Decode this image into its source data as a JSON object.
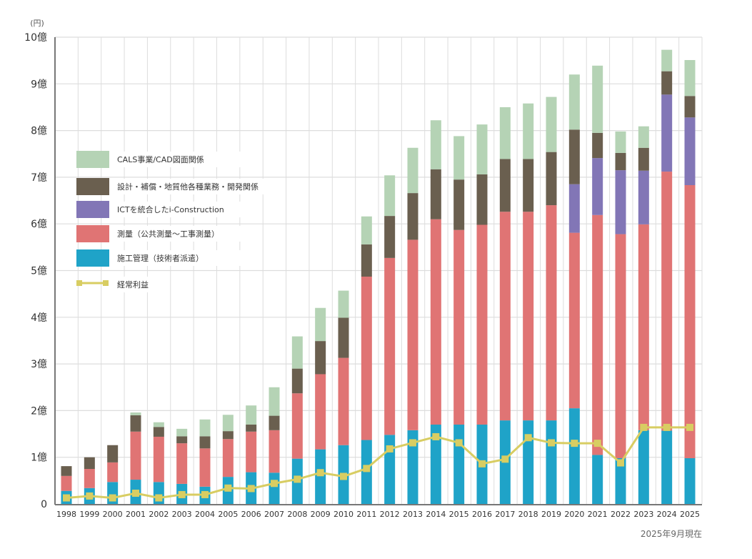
{
  "chart_data": {
    "type": "bar",
    "stacked": true,
    "unit_label": "(円)",
    "footnote": "2025年9月現在",
    "ylim": [
      0,
      10
    ],
    "y_ticks": [
      {
        "value": 0,
        "label": "0"
      },
      {
        "value": 1,
        "label": "1億"
      },
      {
        "value": 2,
        "label": "2億"
      },
      {
        "value": 3,
        "label": "3億"
      },
      {
        "value": 4,
        "label": "4億"
      },
      {
        "value": 5,
        "label": "5億"
      },
      {
        "value": 6,
        "label": "6億"
      },
      {
        "value": 7,
        "label": "7億"
      },
      {
        "value": 8,
        "label": "8億"
      },
      {
        "value": 9,
        "label": "9億"
      },
      {
        "value": 10,
        "label": "10億"
      }
    ],
    "grid": true,
    "legend_position": "upper-left-inside",
    "categories": [
      "1998",
      "1999",
      "2000",
      "2001",
      "2002",
      "2003",
      "2004",
      "2005",
      "2006",
      "2007",
      "2008",
      "2009",
      "2010",
      "2011",
      "2012",
      "2013",
      "2014",
      "2015",
      "2016",
      "2017",
      "2018",
      "2019",
      "2020",
      "2021",
      "2022",
      "2023",
      "2024",
      "2025"
    ],
    "series": [
      {
        "name": "施工管理（技術者派遣）",
        "color": "#1fa3c8",
        "values": [
          0.28,
          0.34,
          0.47,
          0.52,
          0.47,
          0.43,
          0.37,
          0.58,
          0.68,
          0.67,
          0.97,
          1.17,
          1.26,
          1.37,
          1.48,
          1.58,
          1.7,
          1.7,
          1.7,
          1.79,
          1.79,
          1.79,
          2.05,
          1.05,
          0.98,
          1.58,
          1.57,
          0.98
        ]
      },
      {
        "name": "測量（公共測量〜工事測量）",
        "color": "#e07474",
        "values": [
          0.32,
          0.41,
          0.42,
          1.03,
          0.97,
          0.87,
          0.82,
          0.81,
          0.87,
          0.91,
          1.4,
          1.61,
          1.87,
          3.5,
          3.79,
          4.08,
          4.4,
          4.17,
          4.28,
          4.47,
          4.47,
          4.61,
          3.76,
          5.14,
          4.8,
          4.41,
          5.55,
          5.85
        ]
      },
      {
        "name": "ICTを統合したi-Construction",
        "color": "#8276b6",
        "values": [
          0,
          0,
          0,
          0,
          0,
          0,
          0,
          0,
          0,
          0,
          0,
          0,
          0,
          0,
          0,
          0,
          0,
          0,
          0,
          0,
          0,
          0,
          1.04,
          1.22,
          1.37,
          1.15,
          1.65,
          1.45
        ]
      },
      {
        "name": "設計・補償・地質他各種業務・開発関係",
        "color": "#6a5f4f",
        "values": [
          0.21,
          0.25,
          0.37,
          0.35,
          0.21,
          0.15,
          0.26,
          0.17,
          0.15,
          0.31,
          0.53,
          0.71,
          0.86,
          0.69,
          0.9,
          1.0,
          1.07,
          1.08,
          1.08,
          1.13,
          1.13,
          1.14,
          1.17,
          0.54,
          0.37,
          0.49,
          0.5,
          0.46
        ]
      },
      {
        "name": "CALS事業/CAD図面関係",
        "color": "#b5d3b5",
        "values": [
          0,
          0,
          0,
          0.06,
          0.1,
          0.16,
          0.36,
          0.35,
          0.41,
          0.61,
          0.69,
          0.71,
          0.58,
          0.6,
          0.87,
          0.97,
          1.05,
          0.93,
          1.07,
          1.11,
          1.19,
          1.18,
          1.18,
          1.44,
          0.46,
          0.46,
          0.46,
          0.77
        ]
      }
    ],
    "line_series": {
      "name": "経常利益",
      "color": "#d8cd62",
      "values": [
        0.13,
        0.17,
        0.13,
        0.23,
        0.13,
        0.2,
        0.2,
        0.34,
        0.33,
        0.44,
        0.53,
        0.67,
        0.59,
        0.76,
        1.18,
        1.31,
        1.44,
        1.31,
        0.86,
        0.96,
        1.42,
        1.31,
        1.3,
        1.3,
        0.88,
        1.64,
        1.64,
        1.64
      ]
    },
    "legend": [
      {
        "label": "CALS事業/CAD図面関係",
        "color": "#b5d3b5",
        "kind": "box"
      },
      {
        "label": "設計・補償・地質他各種業務・開発関係",
        "color": "#6a5f4f",
        "kind": "box"
      },
      {
        "label": "ICTを統合したi-Construction",
        "color": "#8276b6",
        "kind": "box"
      },
      {
        "label": "測量（公共測量〜工事測量）",
        "color": "#e07474",
        "kind": "box"
      },
      {
        "label": "施工管理（技術者派遣）",
        "color": "#1fa3c8",
        "kind": "box"
      },
      {
        "label": "経常利益",
        "color": "#d8cd62",
        "kind": "line"
      }
    ],
    "title": "",
    "xlabel": "",
    "ylabel": "(円)"
  }
}
